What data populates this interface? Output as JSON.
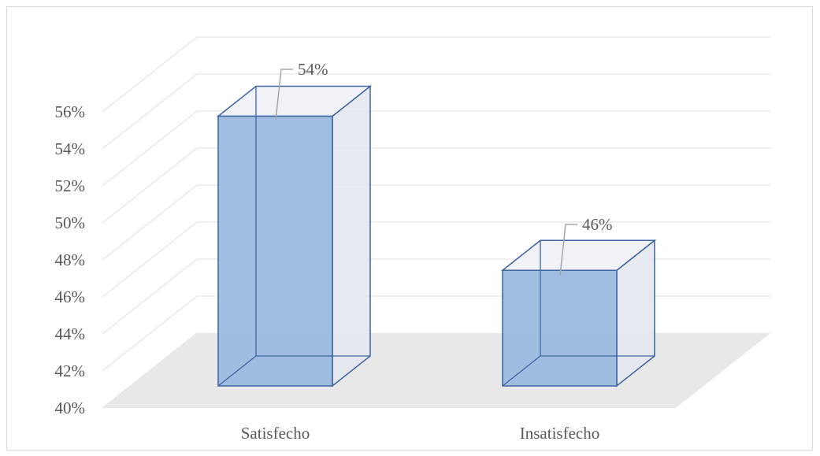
{
  "chart_data": {
    "type": "bar",
    "three_d": true,
    "categories": [
      "Satisfecho",
      "Insatisfecho"
    ],
    "values": [
      54,
      46
    ],
    "data_labels": [
      "54%",
      "46%"
    ],
    "ylim": [
      40,
      56
    ],
    "yticks": [
      "40%",
      "42%",
      "44%",
      "46%",
      "48%",
      "50%",
      "52%",
      "54%",
      "56%"
    ],
    "ytick_values": [
      40,
      42,
      44,
      46,
      48,
      50,
      52,
      54,
      56
    ],
    "title": "",
    "xlabel": "",
    "ylabel": "",
    "grid": true,
    "legend": "none",
    "colors": {
      "bar_front": "#9bbae0",
      "bar_side": "#e3e8ef",
      "bar_top": "#eef1f6",
      "bar_edge": "#3e64a0",
      "floor": "#e8e8e8",
      "grid": "#e6e6e6",
      "axis_text": "#595959",
      "leader": "#a6a6a6"
    }
  }
}
